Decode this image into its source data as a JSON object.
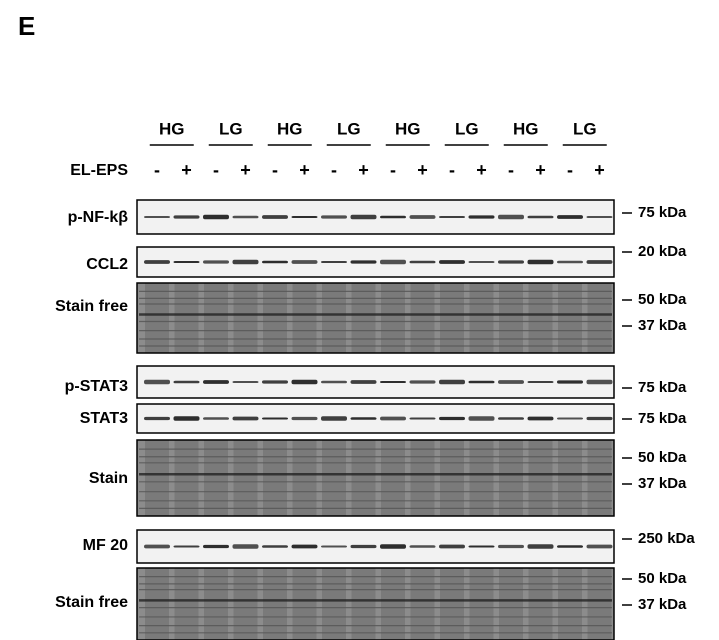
{
  "panel_label": "E",
  "groups": [
    "HG",
    "LG",
    "HG",
    "LG",
    "HG",
    "LG",
    "HG",
    "LG"
  ],
  "treatment_label": "EL-EPS",
  "treatments": [
    "-",
    "+",
    "-",
    "+",
    "-",
    "+",
    "-",
    "+",
    "-",
    "+",
    "-",
    "+",
    "-",
    "+",
    "-",
    "+"
  ],
  "blots": [
    {
      "label": "p-NF-kβ",
      "markers": [
        "75 kDa"
      ]
    },
    {
      "label": "CCL2",
      "markers": [
        "20 kDa"
      ]
    },
    {
      "label": "Stain free",
      "markers": [
        "50 kDa",
        "37 kDa"
      ]
    },
    {
      "label": "p-STAT3",
      "markers": [
        "75 kDa"
      ]
    },
    {
      "label": "STAT3",
      "markers": [
        "75 kDa"
      ]
    },
    {
      "label": "Stain",
      "markers": [
        "50 kDa",
        "37 kDa"
      ]
    },
    {
      "label": "MF 20",
      "markers": [
        "250 kDa"
      ]
    },
    {
      "label": "Stain free",
      "markers": [
        "50 kDa",
        "37 kDa"
      ]
    }
  ]
}
